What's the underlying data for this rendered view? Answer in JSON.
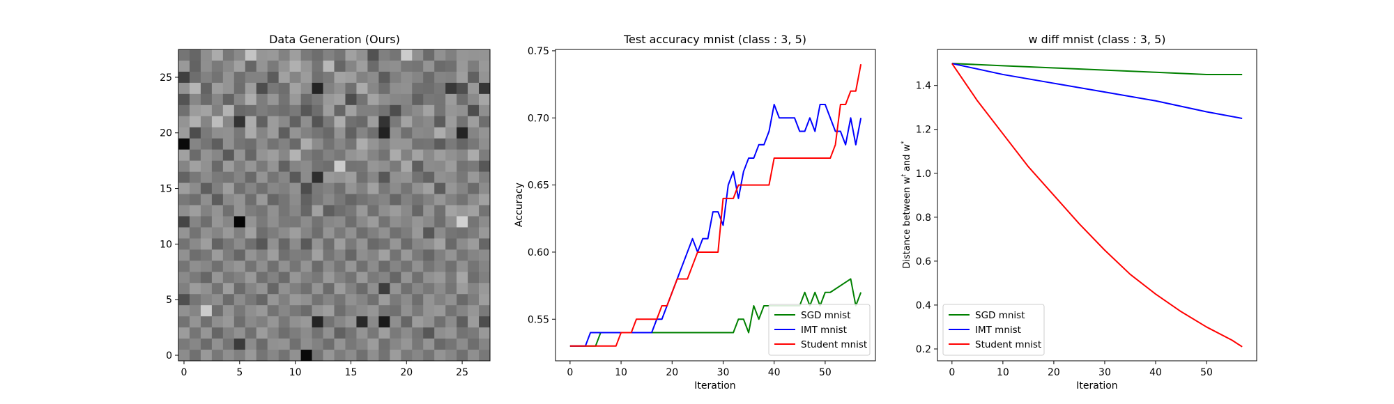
{
  "chart_data": [
    {
      "type": "heatmap",
      "title": "Data Generation (Ours)",
      "xlabel": "",
      "ylabel": "",
      "xticks": [
        0,
        5,
        10,
        15,
        20,
        25
      ],
      "yticks": [
        0,
        5,
        10,
        15,
        20,
        25
      ],
      "xlim": [
        -0.5,
        27.5
      ],
      "ylim": [
        27.5,
        -0.5
      ],
      "grid_size": [
        28,
        28
      ],
      "colormap": "gray",
      "values": [
        [
          0.46,
          0.4,
          0.56,
          0.67,
          0.47,
          0.54,
          0.77,
          0.59,
          0.6,
          0.51,
          0.62,
          0.48,
          0.43,
          0.51,
          0.46,
          0.63,
          0.57,
          0.32,
          0.5,
          0.46,
          0.8,
          0.57,
          0.42,
          0.57,
          0.5,
          0.59,
          0.58,
          0.58
        ],
        [
          0.6,
          0.39,
          0.56,
          0.48,
          0.54,
          0.63,
          0.4,
          0.58,
          0.48,
          0.58,
          0.69,
          0.59,
          0.46,
          0.72,
          0.4,
          0.52,
          0.62,
          0.42,
          0.55,
          0.56,
          0.47,
          0.46,
          0.58,
          0.42,
          0.44,
          0.6,
          0.49,
          0.6
        ],
        [
          0.25,
          0.43,
          0.51,
          0.45,
          0.58,
          0.44,
          0.51,
          0.51,
          0.36,
          0.63,
          0.52,
          0.61,
          0.44,
          0.48,
          0.64,
          0.62,
          0.51,
          0.55,
          0.36,
          0.5,
          0.56,
          0.52,
          0.42,
          0.52,
          0.51,
          0.62,
          0.38,
          0.58
        ],
        [
          0.58,
          0.71,
          0.39,
          0.62,
          0.58,
          0.43,
          0.62,
          0.3,
          0.47,
          0.43,
          0.64,
          0.55,
          0.14,
          0.51,
          0.57,
          0.44,
          0.67,
          0.53,
          0.43,
          0.56,
          0.57,
          0.44,
          0.43,
          0.47,
          0.22,
          0.31,
          0.6,
          0.21
        ],
        [
          0.33,
          0.53,
          0.42,
          0.53,
          0.39,
          0.53,
          0.68,
          0.49,
          0.59,
          0.45,
          0.6,
          0.42,
          0.48,
          0.6,
          0.63,
          0.3,
          0.45,
          0.64,
          0.56,
          0.53,
          0.52,
          0.38,
          0.47,
          0.46,
          0.61,
          0.43,
          0.54,
          0.65
        ],
        [
          0.44,
          0.61,
          0.64,
          0.5,
          0.7,
          0.41,
          0.43,
          0.49,
          0.46,
          0.43,
          0.48,
          0.34,
          0.43,
          0.62,
          0.4,
          0.63,
          0.5,
          0.5,
          0.45,
          0.3,
          0.5,
          0.55,
          0.64,
          0.46,
          0.59,
          0.57,
          0.3,
          0.56
        ],
        [
          0.58,
          0.69,
          0.52,
          0.74,
          0.53,
          0.2,
          0.68,
          0.38,
          0.61,
          0.54,
          0.38,
          0.56,
          0.33,
          0.48,
          0.68,
          0.44,
          0.41,
          0.62,
          0.2,
          0.48,
          0.64,
          0.51,
          0.54,
          0.36,
          0.61,
          0.45,
          0.62,
          0.43
        ],
        [
          0.61,
          0.3,
          0.48,
          0.56,
          0.57,
          0.47,
          0.67,
          0.52,
          0.61,
          0.37,
          0.58,
          0.51,
          0.46,
          0.41,
          0.58,
          0.38,
          0.52,
          0.44,
          0.13,
          0.56,
          0.44,
          0.54,
          0.53,
          0.68,
          0.57,
          0.14,
          0.52,
          0.58
        ],
        [
          0.04,
          0.52,
          0.46,
          0.37,
          0.57,
          0.46,
          0.43,
          0.55,
          0.45,
          0.51,
          0.41,
          0.68,
          0.55,
          0.45,
          0.53,
          0.46,
          0.68,
          0.58,
          0.51,
          0.59,
          0.59,
          0.45,
          0.46,
          0.36,
          0.48,
          0.4,
          0.47,
          0.56
        ],
        [
          0.63,
          0.42,
          0.58,
          0.53,
          0.35,
          0.58,
          0.4,
          0.58,
          0.62,
          0.53,
          0.7,
          0.49,
          0.44,
          0.51,
          0.47,
          0.58,
          0.61,
          0.52,
          0.45,
          0.67,
          0.51,
          0.64,
          0.54,
          0.62,
          0.57,
          0.53,
          0.67,
          0.49
        ],
        [
          0.52,
          0.63,
          0.57,
          0.41,
          0.61,
          0.5,
          0.59,
          0.48,
          0.58,
          0.38,
          0.52,
          0.55,
          0.45,
          0.43,
          0.8,
          0.45,
          0.46,
          0.59,
          0.56,
          0.48,
          0.66,
          0.37,
          0.55,
          0.54,
          0.61,
          0.45,
          0.48,
          0.34
        ],
        [
          0.39,
          0.47,
          0.55,
          0.48,
          0.46,
          0.52,
          0.41,
          0.58,
          0.46,
          0.53,
          0.35,
          0.55,
          0.18,
          0.6,
          0.58,
          0.62,
          0.44,
          0.53,
          0.34,
          0.57,
          0.58,
          0.45,
          0.39,
          0.57,
          0.55,
          0.47,
          0.6,
          0.5
        ],
        [
          0.62,
          0.55,
          0.37,
          0.5,
          0.62,
          0.44,
          0.52,
          0.44,
          0.53,
          0.5,
          0.57,
          0.3,
          0.48,
          0.51,
          0.44,
          0.58,
          0.51,
          0.63,
          0.47,
          0.55,
          0.46,
          0.57,
          0.63,
          0.36,
          0.59,
          0.52,
          0.42,
          0.55
        ],
        [
          0.47,
          0.43,
          0.56,
          0.36,
          0.54,
          0.58,
          0.43,
          0.6,
          0.4,
          0.46,
          0.55,
          0.38,
          0.47,
          0.54,
          0.47,
          0.4,
          0.45,
          0.49,
          0.52,
          0.4,
          0.51,
          0.45,
          0.51,
          0.59,
          0.51,
          0.45,
          0.55,
          0.63
        ],
        [
          0.56,
          0.62,
          0.51,
          0.58,
          0.44,
          0.58,
          0.49,
          0.46,
          0.57,
          0.46,
          0.53,
          0.4,
          0.63,
          0.37,
          0.43,
          0.47,
          0.6,
          0.44,
          0.56,
          0.61,
          0.54,
          0.4,
          0.58,
          0.44,
          0.64,
          0.6,
          0.63,
          0.45
        ],
        [
          0.27,
          0.52,
          0.43,
          0.59,
          0.53,
          0.02,
          0.58,
          0.48,
          0.56,
          0.48,
          0.47,
          0.55,
          0.45,
          0.53,
          0.55,
          0.43,
          0.54,
          0.61,
          0.45,
          0.56,
          0.52,
          0.59,
          0.54,
          0.43,
          0.56,
          0.82,
          0.46,
          0.55
        ],
        [
          0.58,
          0.45,
          0.57,
          0.52,
          0.6,
          0.5,
          0.63,
          0.43,
          0.49,
          0.55,
          0.62,
          0.52,
          0.43,
          0.58,
          0.48,
          0.57,
          0.43,
          0.5,
          0.57,
          0.44,
          0.49,
          0.6,
          0.34,
          0.55,
          0.46,
          0.44,
          0.49,
          0.6
        ],
        [
          0.45,
          0.54,
          0.62,
          0.39,
          0.47,
          0.55,
          0.44,
          0.34,
          0.57,
          0.4,
          0.55,
          0.35,
          0.58,
          0.43,
          0.62,
          0.48,
          0.58,
          0.41,
          0.45,
          0.59,
          0.42,
          0.53,
          0.56,
          0.64,
          0.41,
          0.55,
          0.61,
          0.4
        ],
        [
          0.57,
          0.43,
          0.47,
          0.61,
          0.49,
          0.4,
          0.58,
          0.51,
          0.62,
          0.44,
          0.49,
          0.48,
          0.63,
          0.46,
          0.53,
          0.4,
          0.56,
          0.52,
          0.63,
          0.45,
          0.6,
          0.48,
          0.4,
          0.5,
          0.58,
          0.46,
          0.52,
          0.55
        ],
        [
          0.46,
          0.56,
          0.53,
          0.44,
          0.55,
          0.59,
          0.45,
          0.56,
          0.44,
          0.57,
          0.46,
          0.58,
          0.42,
          0.55,
          0.46,
          0.59,
          0.44,
          0.55,
          0.42,
          0.52,
          0.45,
          0.57,
          0.46,
          0.52,
          0.44,
          0.57,
          0.46,
          0.52
        ],
        [
          0.54,
          0.48,
          0.4,
          0.59,
          0.47,
          0.51,
          0.6,
          0.44,
          0.51,
          0.42,
          0.59,
          0.51,
          0.47,
          0.6,
          0.51,
          0.45,
          0.6,
          0.48,
          0.52,
          0.4,
          0.58,
          0.44,
          0.57,
          0.6,
          0.48,
          0.65,
          0.43,
          0.5
        ],
        [
          0.5,
          0.61,
          0.57,
          0.45,
          0.62,
          0.42,
          0.52,
          0.58,
          0.4,
          0.57,
          0.5,
          0.44,
          0.58,
          0.42,
          0.61,
          0.51,
          0.42,
          0.56,
          0.24,
          0.58,
          0.44,
          0.53,
          0.47,
          0.55,
          0.46,
          0.61,
          0.52,
          0.6
        ],
        [
          0.31,
          0.46,
          0.52,
          0.56,
          0.42,
          0.55,
          0.47,
          0.4,
          0.59,
          0.5,
          0.6,
          0.57,
          0.45,
          0.52,
          0.46,
          0.57,
          0.52,
          0.44,
          0.61,
          0.48,
          0.55,
          0.43,
          0.58,
          0.51,
          0.57,
          0.41,
          0.49,
          0.62
        ],
        [
          0.57,
          0.52,
          0.8,
          0.43,
          0.58,
          0.47,
          0.56,
          0.6,
          0.45,
          0.53,
          0.47,
          0.42,
          0.58,
          0.62,
          0.43,
          0.51,
          0.55,
          0.59,
          0.46,
          0.44,
          0.57,
          0.48,
          0.58,
          0.6,
          0.45,
          0.52,
          0.59,
          0.48
        ],
        [
          0.45,
          0.58,
          0.44,
          0.56,
          0.6,
          0.43,
          0.54,
          0.5,
          0.59,
          0.47,
          0.57,
          0.6,
          0.14,
          0.45,
          0.53,
          0.59,
          0.16,
          0.54,
          0.1,
          0.56,
          0.4,
          0.61,
          0.57,
          0.44,
          0.55,
          0.37,
          0.61,
          0.3
        ],
        [
          0.61,
          0.46,
          0.59,
          0.4,
          0.51,
          0.57,
          0.44,
          0.61,
          0.52,
          0.43,
          0.49,
          0.55,
          0.45,
          0.57,
          0.38,
          0.46,
          0.58,
          0.47,
          0.62,
          0.48,
          0.55,
          0.46,
          0.34,
          0.56,
          0.59,
          0.45,
          0.48,
          0.6
        ],
        [
          0.48,
          0.53,
          0.42,
          0.57,
          0.46,
          0.23,
          0.55,
          0.42,
          0.57,
          0.58,
          0.44,
          0.56,
          0.51,
          0.43,
          0.58,
          0.47,
          0.52,
          0.61,
          0.44,
          0.53,
          0.59,
          0.47,
          0.58,
          0.41,
          0.46,
          0.55,
          0.43,
          0.52
        ],
        [
          0.55,
          0.44,
          0.6,
          0.47,
          0.56,
          0.5,
          0.6,
          0.46,
          0.53,
          0.45,
          0.57,
          0.04,
          0.46,
          0.59,
          0.49,
          0.55,
          0.44,
          0.56,
          0.45,
          0.61,
          0.48,
          0.53,
          0.46,
          0.58,
          0.53,
          0.44,
          0.56,
          0.47
        ]
      ]
    },
    {
      "type": "line",
      "title": "Test accuracy mnist (class : 3, 5)",
      "xlabel": "Iteration",
      "ylabel": "Accuracy",
      "xlim": [
        -2.85,
        59.85
      ],
      "ylim": [
        0.519,
        0.751
      ],
      "xticks": [
        0,
        10,
        20,
        30,
        40,
        50
      ],
      "yticks": [
        0.55,
        0.6,
        0.65,
        0.7,
        0.75
      ],
      "ytick_format": 2,
      "grid": false,
      "legend": "lower right",
      "series": [
        {
          "name": "SGD mnist",
          "color": "#008000",
          "x": [
            0,
            5,
            6,
            32,
            33,
            34,
            35,
            36,
            37,
            38,
            45,
            46,
            47,
            48,
            49,
            50,
            51,
            55,
            56,
            57
          ],
          "y": [
            0.53,
            0.53,
            0.54,
            0.54,
            0.55,
            0.55,
            0.54,
            0.56,
            0.55,
            0.56,
            0.56,
            0.57,
            0.56,
            0.57,
            0.56,
            0.57,
            0.57,
            0.58,
            0.56,
            0.57
          ]
        },
        {
          "name": "IMT mnist",
          "color": "#0000ff",
          "x": [
            0,
            3,
            4,
            16,
            17,
            18,
            19,
            20,
            21,
            22,
            23,
            24,
            25,
            26,
            27,
            28,
            29,
            30,
            31,
            32,
            33,
            34,
            35,
            36,
            37,
            38,
            39,
            40,
            41,
            44,
            45,
            46,
            47,
            48,
            49,
            50,
            51,
            52,
            53,
            54,
            55,
            56,
            57
          ],
          "y": [
            0.53,
            0.53,
            0.54,
            0.54,
            0.55,
            0.55,
            0.56,
            0.57,
            0.58,
            0.59,
            0.6,
            0.61,
            0.6,
            0.61,
            0.61,
            0.63,
            0.63,
            0.62,
            0.65,
            0.66,
            0.64,
            0.66,
            0.67,
            0.67,
            0.68,
            0.68,
            0.69,
            0.71,
            0.7,
            0.7,
            0.69,
            0.69,
            0.7,
            0.69,
            0.71,
            0.71,
            0.7,
            0.69,
            0.69,
            0.68,
            0.7,
            0.68,
            0.7
          ]
        },
        {
          "name": "Student mnist",
          "color": "#ff0000",
          "x": [
            0,
            9,
            10,
            12,
            13,
            16,
            17,
            18,
            19,
            20,
            21,
            22,
            23,
            24,
            25,
            26,
            27,
            28,
            29,
            30,
            31,
            32,
            33,
            34,
            39,
            40,
            51,
            52,
            53,
            54,
            55,
            56,
            57
          ],
          "y": [
            0.53,
            0.53,
            0.54,
            0.54,
            0.55,
            0.55,
            0.55,
            0.56,
            0.56,
            0.57,
            0.58,
            0.58,
            0.58,
            0.59,
            0.6,
            0.6,
            0.6,
            0.6,
            0.6,
            0.64,
            0.64,
            0.64,
            0.65,
            0.65,
            0.65,
            0.67,
            0.67,
            0.68,
            0.71,
            0.71,
            0.72,
            0.72,
            0.74
          ]
        }
      ]
    },
    {
      "type": "line",
      "title": "w diff mnist (class : 3, 5)",
      "xlabel": "Iteration",
      "ylabel": "Distance between w",
      "ylabel_sup1": "t",
      "ylabel_mid": " and w",
      "ylabel_sup2": "*",
      "xlim": [
        -2.85,
        59.85
      ],
      "ylim": [
        0.146,
        1.564
      ],
      "xticks": [
        0,
        10,
        20,
        30,
        40,
        50
      ],
      "yticks": [
        0.2,
        0.4,
        0.6,
        0.8,
        1.0,
        1.2,
        1.4
      ],
      "ytick_format": 1,
      "grid": false,
      "legend": "lower left",
      "series": [
        {
          "name": "SGD mnist",
          "color": "#008000",
          "x": [
            0,
            10,
            20,
            30,
            40,
            50,
            57
          ],
          "y": [
            1.5,
            1.49,
            1.48,
            1.47,
            1.46,
            1.45,
            1.45
          ]
        },
        {
          "name": "IMT mnist",
          "color": "#0000ff",
          "x": [
            0,
            10,
            20,
            30,
            40,
            50,
            57
          ],
          "y": [
            1.5,
            1.45,
            1.41,
            1.37,
            1.33,
            1.28,
            1.25
          ]
        },
        {
          "name": "Student mnist",
          "color": "#ff0000",
          "x": [
            0,
            5,
            10,
            15,
            20,
            25,
            30,
            35,
            40,
            45,
            50,
            55,
            57
          ],
          "y": [
            1.5,
            1.33,
            1.18,
            1.03,
            0.9,
            0.77,
            0.65,
            0.54,
            0.45,
            0.37,
            0.3,
            0.24,
            0.21
          ]
        }
      ]
    }
  ]
}
